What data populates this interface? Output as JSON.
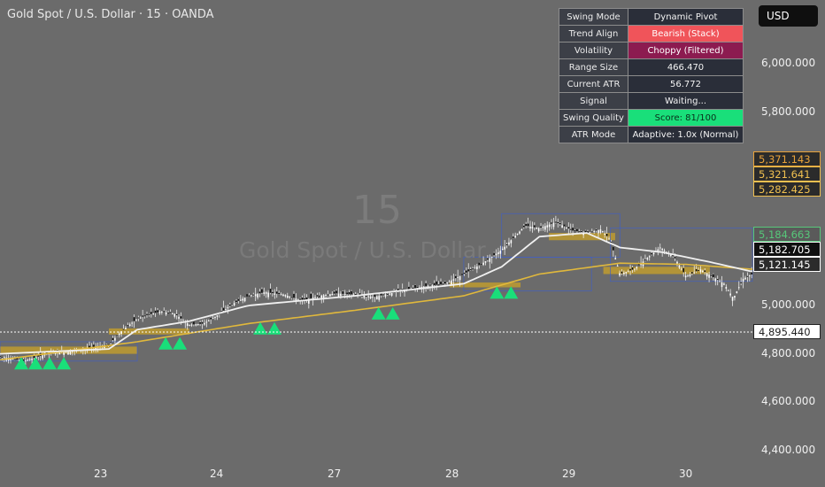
{
  "header": {
    "title": "Gold Spot / U.S. Dollar · 15 · OANDA",
    "currency_button": "USD"
  },
  "watermark": {
    "interval": "15",
    "symbol": "Gold Spot / U.S. Dollar"
  },
  "info_table": {
    "rows": [
      {
        "label": "Swing Mode",
        "value": "Dynamic Pivot",
        "tone": "neutral"
      },
      {
        "label": "Trend Align",
        "value": "Bearish (Stack)",
        "tone": "red"
      },
      {
        "label": "Volatility",
        "value": "Choppy (Filtered)",
        "tone": "maroon"
      },
      {
        "label": "Range Size",
        "value": "466.470",
        "tone": "neutral"
      },
      {
        "label": "Current ATR",
        "value": "56.772",
        "tone": "neutral"
      },
      {
        "label": "Signal",
        "value": "Waiting...",
        "tone": "neutral"
      },
      {
        "label": "Swing Quality",
        "value": "Score: 81/100",
        "tone": "green"
      },
      {
        "label": "ATR Mode",
        "value": "Adaptive: 1.0x (Normal)",
        "tone": "neutral"
      }
    ]
  },
  "price_labels": [
    {
      "text": "5,371.143",
      "color": "#e8a23a",
      "bg": "#2b2b2b"
    },
    {
      "text": "5,321.641",
      "color": "#f0c050",
      "bg": "#2b2b2b"
    },
    {
      "text": "5,282.425",
      "color": "#f0c050",
      "bg": "#2b2b2b"
    },
    {
      "text": "5,184.663",
      "color": "#57c77a",
      "bg": "#5a5a5a"
    },
    {
      "text": "5,182.705",
      "color": "#ffffff",
      "bg": "#101010"
    },
    {
      "text": "5,121.145",
      "color": "#ffffff",
      "bg": "#2b2b2b"
    },
    {
      "text": "4,895.440",
      "color": "#222222",
      "bg": "#ffffff"
    }
  ],
  "colors": {
    "background": "#6b6b6b",
    "candle": "#ffffff",
    "candle_dark": "#111111",
    "ma_fast": "#f0f0f0",
    "ma_slow": "#e0b83c",
    "zone": "#c9a227",
    "signal": "#19df7a",
    "box_blue": "#3f5fc8"
  },
  "chart_data": {
    "type": "candlestick",
    "title": "Gold Spot / U.S. Dollar · 15 · OANDA",
    "y_ticks": [
      "6,000.000",
      "5,800.000",
      "5,000.000",
      "4,800.000",
      "4,600.000",
      "4,400.000"
    ],
    "y_tick_values": [
      6000,
      5800,
      5000,
      4800,
      4600,
      4400
    ],
    "x_ticks": [
      "23",
      "24",
      "27",
      "28",
      "29",
      "30"
    ],
    "ylim": [
      4350,
      6100
    ],
    "close_path": [
      [
        0,
        4790
      ],
      [
        10,
        4770
      ],
      [
        20,
        4800
      ],
      [
        30,
        4810
      ],
      [
        40,
        4825
      ],
      [
        46,
        4840
      ],
      [
        52,
        4900
      ],
      [
        58,
        4945
      ],
      [
        62,
        4960
      ],
      [
        68,
        4975
      ],
      [
        74,
        4965
      ],
      [
        80,
        4920
      ],
      [
        86,
        4925
      ],
      [
        92,
        4960
      ],
      [
        98,
        5005
      ],
      [
        105,
        5040
      ],
      [
        112,
        5055
      ],
      [
        120,
        5045
      ],
      [
        128,
        5020
      ],
      [
        135,
        5040
      ],
      [
        142,
        5050
      ],
      [
        150,
        5045
      ],
      [
        158,
        5035
      ],
      [
        165,
        5050
      ],
      [
        172,
        5065
      ],
      [
        180,
        5080
      ],
      [
        188,
        5090
      ],
      [
        196,
        5130
      ],
      [
        204,
        5175
      ],
      [
        212,
        5230
      ],
      [
        218,
        5290
      ],
      [
        222,
        5330
      ],
      [
        228,
        5320
      ],
      [
        235,
        5345
      ],
      [
        242,
        5310
      ],
      [
        248,
        5300
      ],
      [
        254,
        5315
      ],
      [
        258,
        5270
      ],
      [
        262,
        5130
      ],
      [
        268,
        5150
      ],
      [
        274,
        5200
      ],
      [
        279,
        5240
      ],
      [
        285,
        5200
      ],
      [
        290,
        5120
      ],
      [
        296,
        5150
      ],
      [
        301,
        5120
      ],
      [
        306,
        5090
      ],
      [
        310,
        5030
      ],
      [
        314,
        5110
      ],
      [
        318,
        5130
      ]
    ],
    "ma_fast_path": [
      [
        0,
        4800
      ],
      [
        46,
        4820
      ],
      [
        58,
        4900
      ],
      [
        80,
        4935
      ],
      [
        105,
        5000
      ],
      [
        150,
        5040
      ],
      [
        196,
        5090
      ],
      [
        212,
        5160
      ],
      [
        228,
        5285
      ],
      [
        248,
        5300
      ],
      [
        262,
        5240
      ],
      [
        280,
        5220
      ],
      [
        300,
        5180
      ],
      [
        318,
        5140
      ]
    ],
    "ma_slow_path": [
      [
        0,
        4775
      ],
      [
        58,
        4850
      ],
      [
        105,
        4925
      ],
      [
        150,
        4980
      ],
      [
        196,
        5040
      ],
      [
        228,
        5130
      ],
      [
        262,
        5175
      ],
      [
        290,
        5170
      ],
      [
        318,
        5150
      ]
    ],
    "signals": [
      {
        "day": 9,
        "count": 4
      },
      {
        "day": 70,
        "count": 2
      },
      {
        "day": 110,
        "count": 2
      },
      {
        "day": 160,
        "count": 2
      },
      {
        "day": 210,
        "count": 2
      }
    ]
  }
}
